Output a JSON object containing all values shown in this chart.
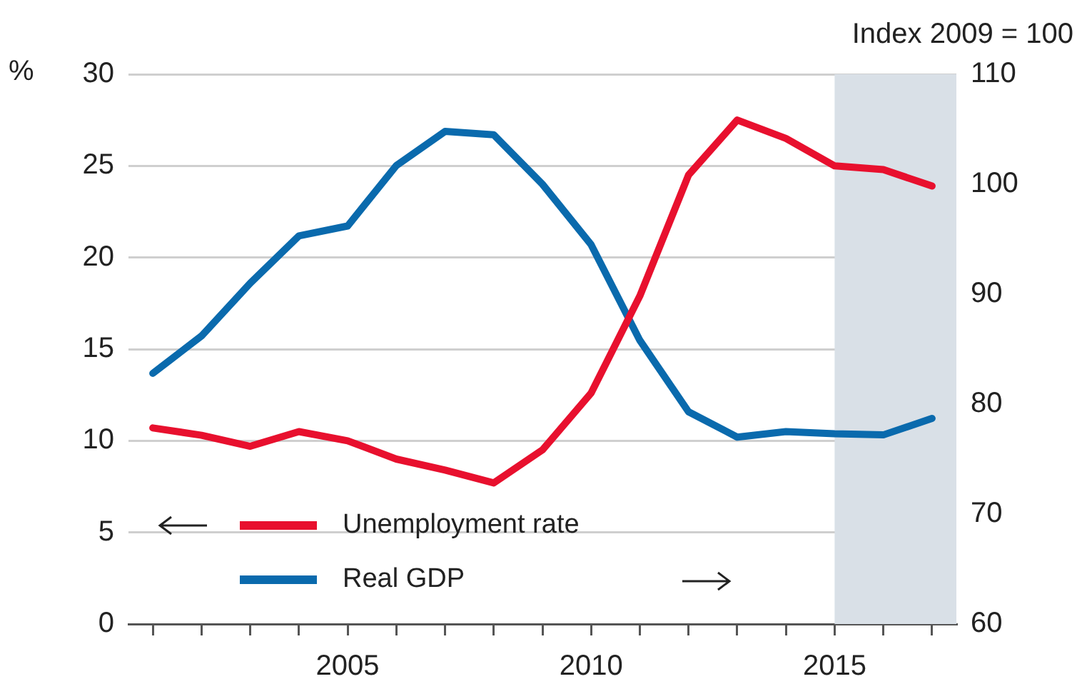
{
  "chart_data": {
    "type": "line",
    "ylabel": "%",
    "y2label": "Index 2009 = 100",
    "x": [
      2001,
      2002,
      2003,
      2004,
      2005,
      2006,
      2007,
      2008,
      2009,
      2010,
      2011,
      2012,
      2013,
      2014,
      2015,
      2016,
      2017
    ],
    "series": [
      {
        "name": "Unemployment rate",
        "color": "#e8102e",
        "values": [
          10.7,
          10.3,
          9.7,
          10.5,
          10.0,
          9.0,
          8.4,
          7.7,
          9.5,
          12.6,
          17.9,
          24.5,
          27.5,
          26.5,
          25.0,
          24.8,
          23.9
        ]
      },
      {
        "name": "Real GDP",
        "color": "#0a6aad",
        "axis": "y2",
        "values": [
          82.8,
          86.2,
          91.0,
          95.3,
          96.2,
          101.7,
          104.8,
          104.5,
          100.0,
          94.5,
          85.8,
          79.3,
          77.0,
          77.5,
          77.3,
          77.2,
          78.7
        ]
      }
    ],
    "xlim": [
      2000.5,
      2017.5
    ],
    "xticks": [
      {
        "value": 2001,
        "label": null
      },
      {
        "value": 2002,
        "label": null
      },
      {
        "value": 2003,
        "label": null
      },
      {
        "value": 2004,
        "label": null
      },
      2005,
      {
        "value": 2006,
        "label": null
      },
      {
        "value": 2007,
        "label": null
      },
      {
        "value": 2008,
        "label": null
      },
      {
        "value": 2009,
        "label": null
      },
      2010,
      {
        "value": 2011,
        "label": null
      },
      {
        "value": 2012,
        "label": null
      },
      {
        "value": 2013,
        "label": null
      },
      {
        "value": 2014,
        "label": null
      },
      2015,
      {
        "value": 2016,
        "label": null
      },
      {
        "value": 2017,
        "label": null
      }
    ],
    "ylim": [
      0,
      30
    ],
    "yticks": [
      0,
      5,
      10,
      15,
      20,
      25,
      30
    ],
    "y2lim": [
      60,
      110
    ],
    "y2ticks": [
      60,
      70,
      80,
      90,
      100,
      110
    ],
    "bands": [
      {
        "axis": "x",
        "from": 2015,
        "to": 2017.5,
        "color": "#d9e0e7"
      }
    ],
    "grid": "y",
    "legend": "bottom left",
    "marker": "none",
    "line_style": "solid"
  }
}
